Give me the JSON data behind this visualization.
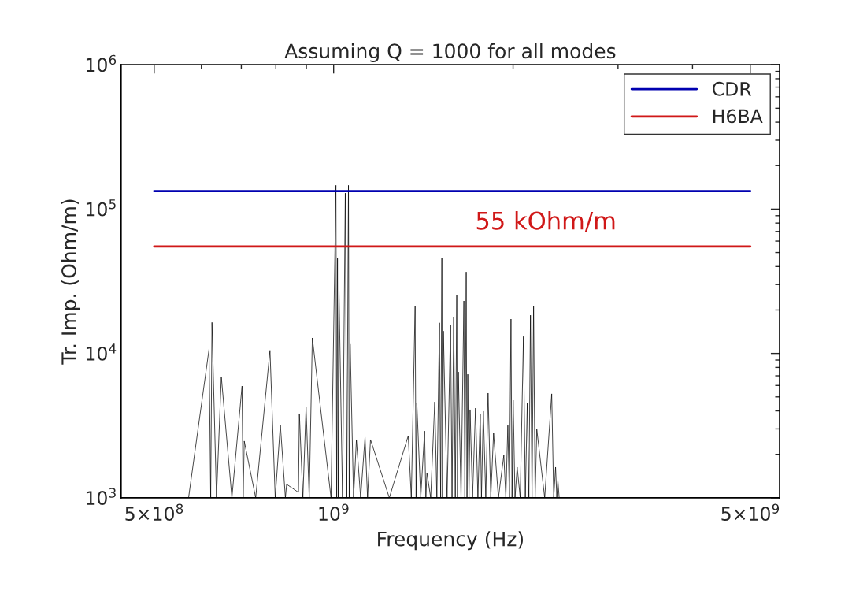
{
  "chart_data": {
    "type": "line",
    "title": "Assuming Q = 1000 for all modes",
    "xlabel": "Frequency (Hz)",
    "ylabel": "Tr. Imp. (Ohm/m)",
    "log": "xy",
    "xlim": [
      440000000,
      5600000000
    ],
    "ylim": [
      1000,
      1000000
    ],
    "xticks": [
      {
        "value": 500000000,
        "label": "5×10$^{8}$"
      },
      {
        "value": 1000000000,
        "label": "10$^{9}$"
      },
      {
        "value": 5000000000,
        "label": "5×10$^{9}$"
      }
    ],
    "yticks": [
      {
        "value": 1000,
        "label": "10$^{3}$"
      },
      {
        "value": 10000,
        "label": "10$^{4}$"
      },
      {
        "value": 100000,
        "label": "10$^{5}$"
      },
      {
        "value": 1000000,
        "label": "10$^{6}$"
      }
    ],
    "grid": false,
    "legend": "top right",
    "annotations": [
      "55 kOhm/m"
    ],
    "series": [
      {
        "color": "#000000",
        "x": [
          571000000,
          618000000,
          622000000,
          625000000,
          636000000,
          648000000,
          675000000,
          702000000,
          705000000,
          708000000,
          740000000,
          782000000,
          798000000,
          814000000,
          830000000,
          834000000,
          873000000,
          876000000,
          888000000,
          899000000,
          910000000,
          921000000,
          990000000,
          1009000000,
          1012000000,
          1015000000,
          1018000000,
          1021000000,
          1035000000,
          1046000000,
          1052000000,
          1059000000,
          1062000000,
          1066000000,
          1080000000,
          1092000000,
          1110000000,
          1129000000,
          1140000000,
          1153000000,
          1240000000,
          1334000000,
          1350000000,
          1370000000,
          1375000000,
          1379000000,
          1400000000,
          1421000000,
          1428000000,
          1434000000,
          1455000000,
          1478000000,
          1490000000,
          1505000000,
          1512000000,
          1519000000,
          1523000000,
          1528000000,
          1550000000,
          1571000000,
          1580000000,
          1590000000,
          1600000000,
          1609000000,
          1614000000,
          1619000000,
          1636000000,
          1654000000,
          1660000000,
          1669000000,
          1674000000,
          1679000000,
          1687000000,
          1694000000,
          1710000000,
          1730000000,
          1746000000,
          1762000000,
          1770000000,
          1783000000,
          1800000000,
          1816000000,
          1835000000,
          1855000000,
          1890000000,
          1930000000,
          1945000000,
          1960000000,
          1972000000,
          1984000000,
          1992000000,
          2001000000,
          2015000000,
          2032000000,
          2056000000,
          2082000000,
          2097000000,
          2113000000,
          2126000000,
          2139000000,
          2152000000,
          2165000000,
          2178000000,
          2192000000,
          2260000000,
          2322000000,
          2340000000,
          2357000000,
          2368000000,
          2378000000,
          2390000000
        ],
        "values": [
          1000,
          10700,
          1000,
          16400,
          1000,
          6900,
          1000,
          5940,
          1000,
          2470,
          1000,
          10500,
          1000,
          3210,
          1000,
          1240,
          1090,
          3830,
          1000,
          4240,
          1000,
          12800,
          1000,
          146000,
          1000,
          46000,
          1000,
          26800,
          1000,
          129000,
          1000,
          146000,
          1000,
          11600,
          1000,
          2530,
          1000,
          2630,
          1000,
          2530,
          1000,
          2690,
          1000,
          21400,
          1000,
          4510,
          1000,
          2900,
          1000,
          1490,
          1000,
          4620,
          1000,
          16300,
          1000,
          46000,
          1000,
          14300,
          1000,
          15800,
          1000,
          17900,
          1000,
          25500,
          1000,
          7450,
          1000,
          23100,
          1000,
          36700,
          1000,
          7170,
          1000,
          4080,
          1000,
          4180,
          1000,
          3830,
          1000,
          3980,
          1000,
          5310,
          1000,
          2800,
          1000,
          1970,
          1000,
          3170,
          1000,
          17300,
          1000,
          4740,
          1000,
          1630,
          1000,
          13100,
          1000,
          4510,
          1000,
          18400,
          1000,
          21400,
          1000,
          2980,
          1000,
          5250,
          1000,
          1630,
          1000,
          1320,
          1000
        ]
      },
      {
        "name": "CDR",
        "color": "#0000b0",
        "x": [
          500000000,
          5000000000
        ],
        "values": [
          133000,
          133000
        ]
      },
      {
        "name": "H6BA",
        "color": "#d01818",
        "x": [
          500000000,
          5000000000
        ],
        "values": [
          55000,
          55000
        ]
      }
    ]
  }
}
